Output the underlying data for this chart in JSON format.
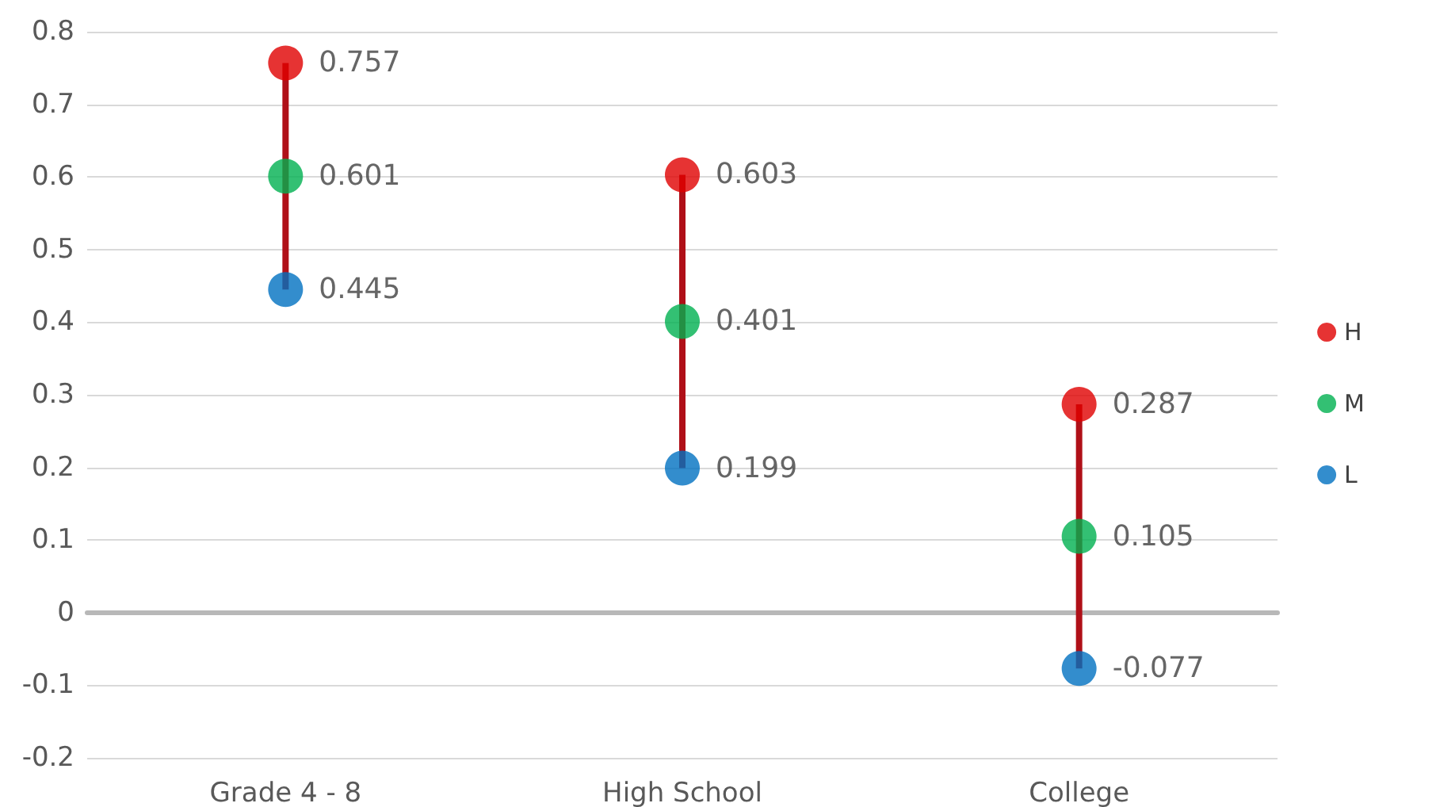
{
  "chart_data": {
    "type": "scatter",
    "categories": [
      "Grade 4 - 8",
      "High School",
      "College"
    ],
    "series": [
      {
        "type": "bar",
        "color": "#b01018",
        "base": [
          0.445,
          0.199,
          -0.077
        ],
        "values": [
          0.312,
          0.404,
          0.364
        ]
      },
      {
        "name": "H",
        "color": "#e00000",
        "values": [
          0.757,
          0.603,
          0.287
        ],
        "value_labels": [
          "0.757",
          "0.603",
          "0.287"
        ]
      },
      {
        "name": "M",
        "color": "#00b050",
        "values": [
          0.601,
          0.401,
          0.105
        ],
        "value_labels": [
          "0.601",
          "0.401",
          "0.105"
        ]
      },
      {
        "name": "L",
        "color": "#0070c0",
        "values": [
          0.445,
          0.199,
          -0.077
        ],
        "value_labels": [
          "0.445",
          "0.199",
          "-0.077"
        ]
      }
    ],
    "ylim": [
      -0.2,
      0.8
    ],
    "yticks": [
      -0.2,
      -0.1,
      0,
      0.1,
      0.2,
      0.3,
      0.4,
      0.5,
      0.6,
      0.7,
      0.8
    ],
    "grid": "y",
    "legend": "right",
    "marker": "circle"
  }
}
